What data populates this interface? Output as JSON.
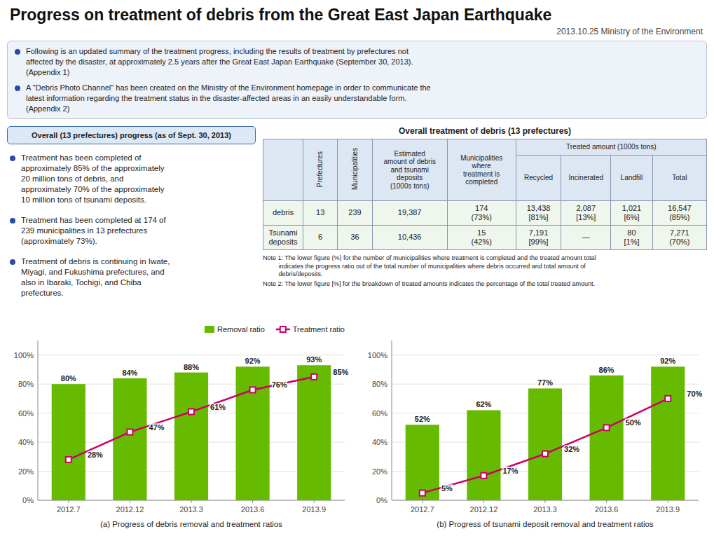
{
  "title": "Progress on treatment of debris from the Great East Japan Earthquake",
  "subtitle": "2013.10.25 Ministry of the Environment",
  "info": [
    "Following is an updated summary of the treatment progress, including the results of treatment by prefectures not\naffected by the disaster, at approximately 2.5 years after the Great East Japan Earthquake (September 30, 2013).\n(Appendix 1)",
    "A \"Debris Photo Channel\" has been created on the Ministry of the Environment homepage in order to communicate the\nlatest information regarding the treatment status in the disaster-affected areas in an easily understandable form.\n(Appendix 2)"
  ],
  "section_title": "Overall (13 prefectures) progress (as of Sept. 30, 2013)",
  "points": [
    "Treatment has been completed of\napproximately 85% of the approximately\n20 million tons of debris, and\napproximately 70% of the approximately\n10 million tons of tsunami deposits.",
    "Treatment has been completed at 174 of\n239 municipalities in 13 prefectures\n(approximately 73%).",
    "Treatment of debris is continuing in Iwate,\nMiyagi, and Fukushima prefectures, and\nalso in Ibaraki, Tochigi, and Chiba\nprefectures."
  ],
  "table": {
    "title": "Overall treatment of debris (13 prefectures)",
    "columns": [
      "Prefectures",
      "Municipalities",
      "Estimated\namount of debris\nand tsunami\ndeposits\n(1000s tons)",
      "Municipalities\nwhere\ntreatment is\ncompleted",
      {
        "group": "Treated amount (1000s tons)",
        "columns": [
          "Recycled",
          "Incinerated",
          "Landfill",
          "Total"
        ]
      }
    ],
    "rows": [
      {
        "label": "debris",
        "cells": [
          "13",
          "239",
          "19,387",
          "174\n(73%)",
          "13,438\n[81%]",
          "2,087\n[13%]",
          "1,021\n[6%]",
          "16,547\n(85%)"
        ]
      },
      {
        "label": "Tsunami\ndeposits",
        "cells": [
          "6",
          "36",
          "10,436",
          "15\n(42%)",
          "7,191\n[99%]",
          "—",
          "80\n[1%]",
          "7,271\n(70%)"
        ]
      }
    ]
  },
  "notes": [
    "Note 1: The lower figure (%) for the number of municipalities where treatment is completed and the treated amount total\n         indicates the progress ratio out of the total number of municipalities where debris occurred and total amount of\n         debris/deposits.",
    "Note 2: The lower figure [%] for the breakdown of treated amounts indicates the percentage of the total treated amount."
  ],
  "chart_data": [
    {
      "type": "bar",
      "x_label": "(a) Progress of debris removal and treatment ratios",
      "categories": [
        "2012.7",
        "2012.12",
        "2013.3",
        "2013.6",
        "2013.9"
      ],
      "series": [
        {
          "name": "Removal ratio",
          "type": "bar",
          "color": "#66BB00",
          "values": [
            80,
            84,
            88,
            92,
            93
          ],
          "value_labels": [
            "80%",
            "84%",
            "88%",
            "92%",
            "93%"
          ]
        },
        {
          "name": "Treatment ratio",
          "type": "line",
          "color": "#CC0066",
          "marker": "square",
          "values": [
            28,
            47,
            61,
            76,
            85
          ],
          "value_labels": [
            "28%",
            "47%",
            "61%",
            "76%",
            "85%"
          ]
        }
      ],
      "ylim": [
        0,
        110
      ],
      "yticks": [
        {
          "value": 0,
          "label": "0%"
        },
        {
          "value": 20,
          "label": "20%"
        },
        {
          "value": 40,
          "label": "40%"
        },
        {
          "value": 60,
          "label": "60%"
        },
        {
          "value": 80,
          "label": "80%"
        },
        {
          "value": 100,
          "label": "100%"
        }
      ],
      "grid": true,
      "data_labels": true,
      "legend": "upper right"
    },
    {
      "type": "bar",
      "x_label": "(b) Progress of tsunami deposit removal and treatment ratios",
      "categories": [
        "2012.7",
        "2012.12",
        "2013.3",
        "2013.6",
        "2013.9"
      ],
      "series": [
        {
          "type": "bar",
          "color": "#66BB00",
          "values": [
            52,
            62,
            77,
            86,
            92
          ],
          "value_labels": [
            "52%",
            "62%",
            "77%",
            "86%",
            "92%"
          ]
        },
        {
          "type": "line",
          "color": "#CC0066",
          "marker": "square",
          "values": [
            5,
            17,
            32,
            50,
            70
          ],
          "value_labels": [
            "5%",
            "17%",
            "32%",
            "50%",
            "70%"
          ]
        }
      ],
      "ylim": [
        0,
        110
      ],
      "yticks": [
        {
          "value": 0,
          "label": "0%"
        },
        {
          "value": 20,
          "label": "20%"
        },
        {
          "value": 40,
          "label": "40%"
        },
        {
          "value": 60,
          "label": "60%"
        },
        {
          "value": 80,
          "label": "80%"
        },
        {
          "value": 100,
          "label": "100%"
        }
      ],
      "grid": true,
      "data_labels": true
    }
  ]
}
